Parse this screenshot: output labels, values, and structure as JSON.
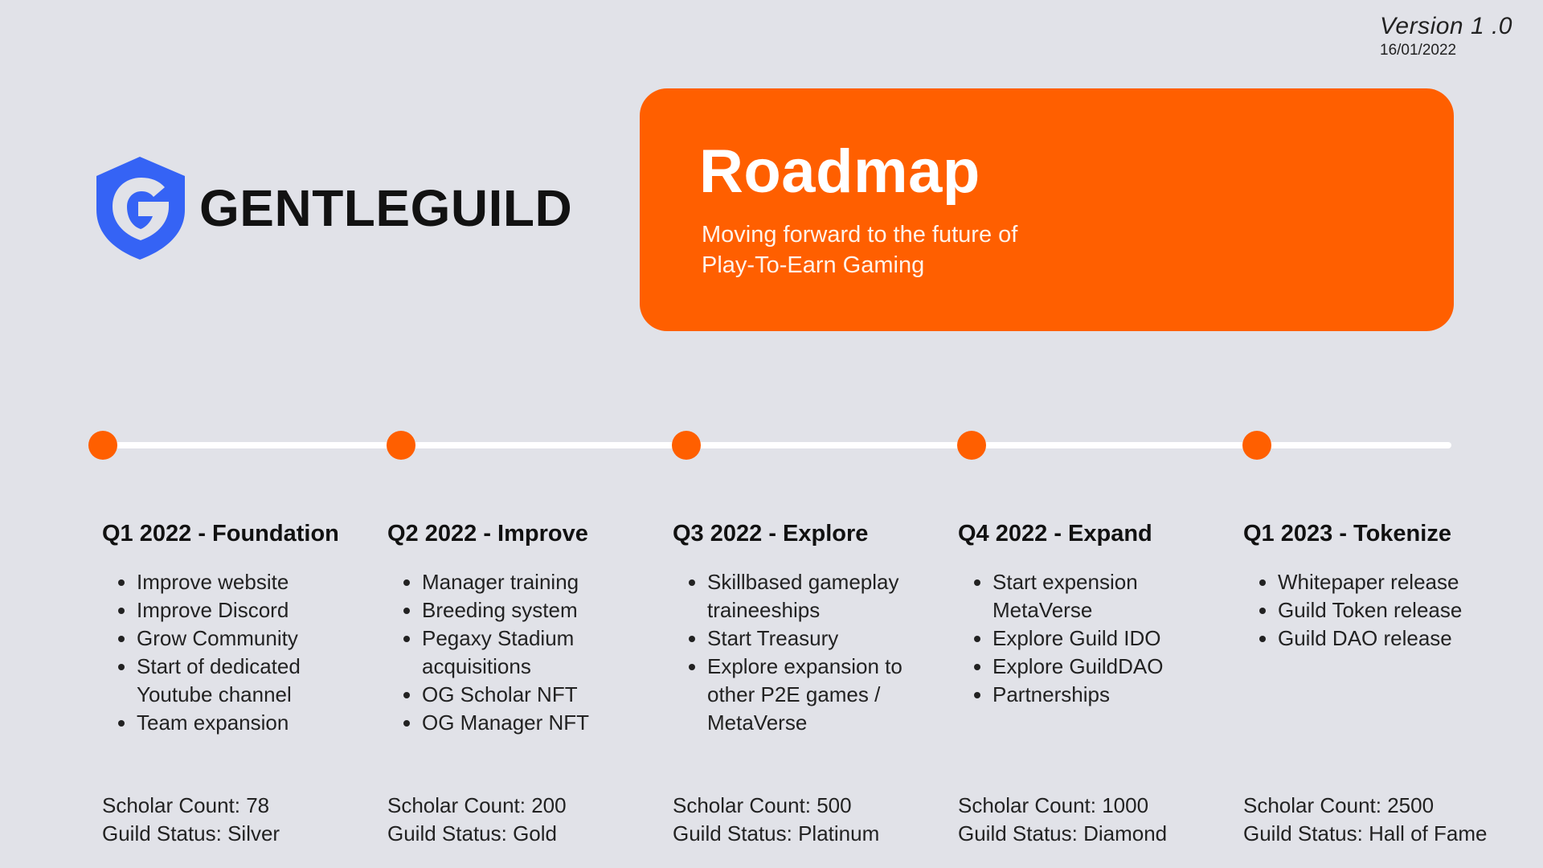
{
  "header": {
    "version": "Version 1 .0",
    "date": "16/01/2022"
  },
  "logo": {
    "text": "GENTLEGUILD",
    "icon": "shield-g-icon",
    "color": "#3563f5"
  },
  "hero": {
    "title": "Roadmap",
    "subtitle_line1": "Moving forward to the future of",
    "subtitle_line2": "Play-To-Earn Gaming",
    "color": "#ff5f00"
  },
  "phases": [
    {
      "title": "Q1 2022 - Foundation",
      "items": [
        "Improve website",
        "Improve Discord",
        "Grow Community",
        "Start of dedicated Youtube channel",
        "Team expansion"
      ],
      "scholar_count": "Scholar Count: 78",
      "guild_status": "Guild Status: Silver"
    },
    {
      "title": "Q2 2022 - Improve",
      "items": [
        "Manager training",
        "Breeding system",
        "Pegaxy Stadium acquisitions",
        "OG Scholar NFT",
        "OG Manager NFT"
      ],
      "scholar_count": "Scholar Count: 200",
      "guild_status": "Guild Status: Gold"
    },
    {
      "title": "Q3 2022 - Explore",
      "items": [
        "Skillbased gameplay traineeships",
        "Start Treasury",
        "Explore expansion to other P2E games / MetaVerse"
      ],
      "scholar_count": "Scholar Count: 500",
      "guild_status": "Guild Status: Platinum"
    },
    {
      "title": "Q4 2022 - Expand",
      "items": [
        "Start expension MetaVerse",
        "Explore Guild IDO",
        "Explore GuildDAO",
        "Partnerships"
      ],
      "scholar_count": "Scholar Count: 1000",
      "guild_status": "Guild Status: Diamond"
    },
    {
      "title": "Q1 2023 - Tokenize",
      "items": [
        "Whitepaper release",
        "Guild Token release",
        "Guild DAO release"
      ],
      "scholar_count": "Scholar Count: 2500",
      "guild_status": "Guild Status: Hall of Fame"
    }
  ]
}
